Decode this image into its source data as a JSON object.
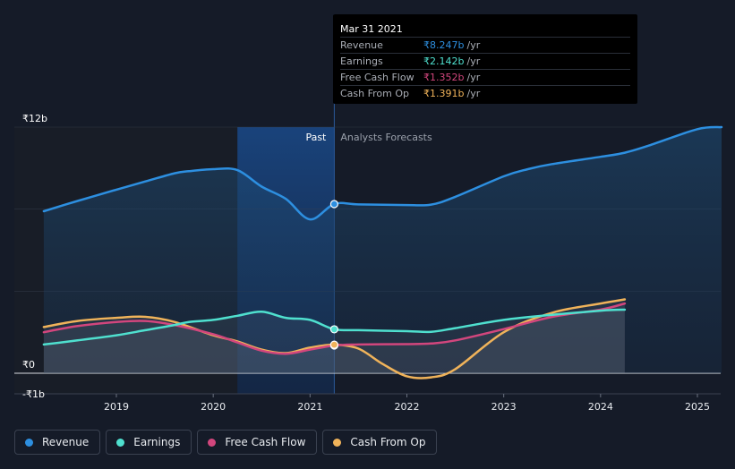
{
  "chart_data": {
    "type": "line",
    "title": "",
    "xlabel": "",
    "ylabel": "",
    "ylim": [
      -1,
      12
    ],
    "xlim": [
      2018.1,
      2025.25
    ],
    "x_ticks": [
      2019,
      2020,
      2021,
      2022,
      2023,
      2024,
      2025
    ],
    "x_tick_labels": [
      "2019",
      "2020",
      "2021",
      "2022",
      "2023",
      "2024",
      "2025"
    ],
    "y_ticks": [
      {
        "value": 12,
        "label": "₹12b"
      },
      {
        "value": 0,
        "label": "₹0"
      },
      {
        "value": -1,
        "label": "-₹1b"
      }
    ],
    "past_label": "Past",
    "forecast_label": "Analysts Forecasts",
    "past_start": 2020.25,
    "divider": 2021.25,
    "grid": true,
    "legend_position": "bottom-left",
    "series": [
      {
        "name": "Revenue",
        "color": "#2d8fe0",
        "x": [
          2018.25,
          2018.6,
          2019.0,
          2019.3,
          2019.6,
          2019.75,
          2020.0,
          2020.25,
          2020.5,
          2020.75,
          2021.0,
          2021.25,
          2021.5,
          2022.0,
          2022.25,
          2022.5,
          2023.0,
          2023.25,
          2023.5,
          2024.0,
          2024.25,
          2024.5,
          2025.0,
          2025.25
        ],
        "y": [
          7.9,
          8.4,
          8.95,
          9.35,
          9.75,
          9.85,
          9.95,
          9.9,
          9.1,
          8.5,
          7.5,
          8.247,
          8.23,
          8.2,
          8.22,
          8.6,
          9.6,
          9.95,
          10.2,
          10.55,
          10.75,
          11.1,
          11.9,
          12.0
        ]
      },
      {
        "name": "Earnings",
        "color": "#4fe0cf",
        "x": [
          2018.25,
          2018.6,
          2019.0,
          2019.3,
          2019.6,
          2019.75,
          2020.0,
          2020.25,
          2020.5,
          2020.75,
          2021.0,
          2021.25,
          2021.5,
          2022.0,
          2022.25,
          2022.5,
          2023.0,
          2023.5,
          2024.0,
          2024.25
        ],
        "y": [
          1.4,
          1.6,
          1.85,
          2.1,
          2.35,
          2.5,
          2.6,
          2.8,
          3.0,
          2.7,
          2.6,
          2.142,
          2.1,
          2.05,
          2.02,
          2.2,
          2.6,
          2.85,
          3.05,
          3.1
        ]
      },
      {
        "name": "Free Cash Flow",
        "color": "#d2467d",
        "x": [
          2018.25,
          2018.6,
          2019.0,
          2019.3,
          2019.6,
          2020.0,
          2020.25,
          2020.5,
          2020.75,
          2021.0,
          2021.25,
          2021.5,
          2022.0,
          2022.25,
          2022.5,
          2023.0,
          2023.5,
          2024.0,
          2024.25
        ],
        "y": [
          2.0,
          2.3,
          2.5,
          2.55,
          2.35,
          1.9,
          1.5,
          1.1,
          0.95,
          1.15,
          1.352,
          1.4,
          1.42,
          1.45,
          1.6,
          2.15,
          2.75,
          3.1,
          3.4
        ]
      },
      {
        "name": "Cash From Op",
        "color": "#f0b35a",
        "x": [
          2018.25,
          2018.6,
          2019.0,
          2019.3,
          2019.6,
          2020.0,
          2020.25,
          2020.5,
          2020.75,
          2021.0,
          2021.25,
          2021.5,
          2021.75,
          2022.0,
          2022.25,
          2022.5,
          2023.0,
          2023.5,
          2024.0,
          2024.25
        ],
        "y": [
          2.25,
          2.55,
          2.7,
          2.75,
          2.5,
          1.85,
          1.55,
          1.15,
          0.98,
          1.25,
          1.391,
          1.2,
          0.45,
          -0.15,
          -0.2,
          0.2,
          2.0,
          2.95,
          3.4,
          3.6
        ]
      }
    ]
  },
  "tooltip": {
    "date": "Mar 31 2021",
    "rows": [
      {
        "name": "Revenue",
        "value": "₹8.247b",
        "unit": "/yr",
        "color": "#2d8fe0"
      },
      {
        "name": "Earnings",
        "value": "₹2.142b",
        "unit": "/yr",
        "color": "#4fe0cf"
      },
      {
        "name": "Free Cash Flow",
        "value": "₹1.352b",
        "unit": "/yr",
        "color": "#d2467d"
      },
      {
        "name": "Cash From Op",
        "value": "₹1.391b",
        "unit": "/yr",
        "color": "#f0b35a"
      }
    ]
  },
  "legend": [
    {
      "label": "Revenue",
      "color": "#2d8fe0"
    },
    {
      "label": "Earnings",
      "color": "#4fe0cf"
    },
    {
      "label": "Free Cash Flow",
      "color": "#d2467d"
    },
    {
      "label": "Cash From Op",
      "color": "#f0b35a"
    }
  ]
}
